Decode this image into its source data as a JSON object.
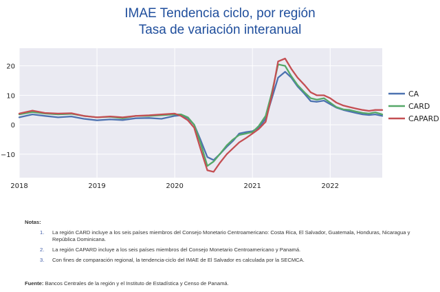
{
  "title_line1": "IMAE Tendencia ciclo, por región",
  "title_line2": "Tasa de variación interanual",
  "notes": {
    "heading": "Notas:",
    "items": [
      {
        "num": "1.",
        "text": "La región CARD incluye a los seis países miembros del Consejo Monetario Centroamericano: Costa Rica, El Salvador, Guatemala, Honduras, Nicaragua y República Dominicana."
      },
      {
        "num": "2.",
        "text": "La región CAPARD incluye a los seis países miembros del Consejo Monetario Centroamericano y Panamá."
      },
      {
        "num": "3.",
        "text": "Con fines de comparación regional, la tendencia-ciclo del IMAE de El Salvador es calculada por la SECMCA."
      }
    ]
  },
  "source": {
    "label": "Fuente:",
    "text": "Bancos Centrales de la región y el Instituto de Estadística y Censo de Panamá."
  },
  "chart_data": {
    "type": "line",
    "title": "IMAE Tendencia ciclo, por región",
    "subtitle": "Tasa de variación interanual",
    "xlim": [
      2018.0,
      2022.67
    ],
    "ylim": [
      -18,
      26
    ],
    "x_ticks": [
      2018,
      2019,
      2020,
      2021,
      2022
    ],
    "x_tick_labels": [
      "2018",
      "2019",
      "2020",
      "2021",
      "2022"
    ],
    "y_ticks": [
      -10,
      0,
      10,
      20
    ],
    "y_tick_labels": [
      "−10",
      "0",
      "10",
      "20"
    ],
    "grid": true,
    "legend": "right",
    "series": [
      {
        "name": "CA",
        "color": "#4c72b0",
        "points": [
          [
            2018.0,
            2.5
          ],
          [
            2018.17,
            3.5
          ],
          [
            2018.33,
            3.0
          ],
          [
            2018.5,
            2.5
          ],
          [
            2018.67,
            2.8
          ],
          [
            2018.83,
            2.0
          ],
          [
            2019.0,
            1.5
          ],
          [
            2019.17,
            1.8
          ],
          [
            2019.33,
            1.6
          ],
          [
            2019.5,
            2.2
          ],
          [
            2019.67,
            2.3
          ],
          [
            2019.83,
            2.0
          ],
          [
            2020.0,
            3.0
          ],
          [
            2020.08,
            3.2
          ],
          [
            2020.17,
            2.2
          ],
          [
            2020.25,
            0.0
          ],
          [
            2020.33,
            -5.0
          ],
          [
            2020.42,
            -11.0
          ],
          [
            2020.5,
            -12.0
          ],
          [
            2020.58,
            -10.0
          ],
          [
            2020.67,
            -7.5
          ],
          [
            2020.75,
            -5.5
          ],
          [
            2020.83,
            -3.0
          ],
          [
            2020.92,
            -2.5
          ],
          [
            2021.0,
            -2.2
          ],
          [
            2021.08,
            -1.0
          ],
          [
            2021.17,
            2.0
          ],
          [
            2021.25,
            9.0
          ],
          [
            2021.33,
            16.0
          ],
          [
            2021.42,
            18.0
          ],
          [
            2021.5,
            16.0
          ],
          [
            2021.58,
            13.0
          ],
          [
            2021.67,
            10.5
          ],
          [
            2021.75,
            8.0
          ],
          [
            2021.83,
            7.8
          ],
          [
            2021.92,
            8.2
          ],
          [
            2022.0,
            7.0
          ],
          [
            2022.08,
            5.8
          ],
          [
            2022.17,
            5.0
          ],
          [
            2022.25,
            4.5
          ],
          [
            2022.33,
            4.0
          ],
          [
            2022.42,
            3.5
          ],
          [
            2022.5,
            3.3
          ],
          [
            2022.58,
            3.5
          ],
          [
            2022.67,
            3.0
          ]
        ]
      },
      {
        "name": "CARD",
        "color": "#55a868",
        "points": [
          [
            2018.0,
            3.5
          ],
          [
            2018.17,
            4.3
          ],
          [
            2018.33,
            3.8
          ],
          [
            2018.5,
            3.5
          ],
          [
            2018.67,
            3.7
          ],
          [
            2018.83,
            3.0
          ],
          [
            2019.0,
            2.5
          ],
          [
            2019.17,
            2.7
          ],
          [
            2019.33,
            2.2
          ],
          [
            2019.5,
            3.0
          ],
          [
            2019.67,
            3.0
          ],
          [
            2019.83,
            3.2
          ],
          [
            2020.0,
            3.5
          ],
          [
            2020.08,
            3.5
          ],
          [
            2020.17,
            2.5
          ],
          [
            2020.25,
            0.0
          ],
          [
            2020.33,
            -6.0
          ],
          [
            2020.42,
            -14.0
          ],
          [
            2020.5,
            -12.5
          ],
          [
            2020.58,
            -10.0
          ],
          [
            2020.67,
            -7.0
          ],
          [
            2020.75,
            -5.0
          ],
          [
            2020.83,
            -3.5
          ],
          [
            2020.92,
            -3.0
          ],
          [
            2021.0,
            -2.5
          ],
          [
            2021.08,
            -0.5
          ],
          [
            2021.17,
            3.0
          ],
          [
            2021.25,
            11.0
          ],
          [
            2021.33,
            20.5
          ],
          [
            2021.42,
            20.0
          ],
          [
            2021.5,
            16.5
          ],
          [
            2021.58,
            13.5
          ],
          [
            2021.67,
            11.0
          ],
          [
            2021.75,
            9.0
          ],
          [
            2021.83,
            8.5
          ],
          [
            2021.92,
            9.0
          ],
          [
            2022.0,
            7.5
          ],
          [
            2022.08,
            6.0
          ],
          [
            2022.17,
            5.2
          ],
          [
            2022.25,
            5.0
          ],
          [
            2022.33,
            4.5
          ],
          [
            2022.42,
            4.0
          ],
          [
            2022.5,
            3.8
          ],
          [
            2022.58,
            4.2
          ],
          [
            2022.67,
            3.5
          ]
        ]
      },
      {
        "name": "CAPARD",
        "color": "#c44e52",
        "points": [
          [
            2018.0,
            3.8
          ],
          [
            2018.17,
            4.8
          ],
          [
            2018.33,
            4.0
          ],
          [
            2018.5,
            3.8
          ],
          [
            2018.67,
            3.9
          ],
          [
            2018.83,
            3.0
          ],
          [
            2019.0,
            2.5
          ],
          [
            2019.17,
            2.8
          ],
          [
            2019.33,
            2.5
          ],
          [
            2019.5,
            3.0
          ],
          [
            2019.67,
            3.2
          ],
          [
            2019.83,
            3.5
          ],
          [
            2020.0,
            3.8
          ],
          [
            2020.08,
            3.0
          ],
          [
            2020.17,
            1.5
          ],
          [
            2020.25,
            -1.0
          ],
          [
            2020.33,
            -8.0
          ],
          [
            2020.42,
            -15.5
          ],
          [
            2020.5,
            -16.0
          ],
          [
            2020.58,
            -13.0
          ],
          [
            2020.67,
            -10.0
          ],
          [
            2020.75,
            -8.0
          ],
          [
            2020.83,
            -6.0
          ],
          [
            2020.92,
            -4.5
          ],
          [
            2021.0,
            -3.0
          ],
          [
            2021.08,
            -1.5
          ],
          [
            2021.17,
            1.0
          ],
          [
            2021.25,
            10.0
          ],
          [
            2021.33,
            21.5
          ],
          [
            2021.42,
            22.5
          ],
          [
            2021.5,
            19.0
          ],
          [
            2021.58,
            16.0
          ],
          [
            2021.67,
            13.5
          ],
          [
            2021.75,
            11.0
          ],
          [
            2021.83,
            10.0
          ],
          [
            2021.92,
            10.0
          ],
          [
            2022.0,
            9.0
          ],
          [
            2022.08,
            7.5
          ],
          [
            2022.17,
            6.5
          ],
          [
            2022.25,
            6.0
          ],
          [
            2022.33,
            5.5
          ],
          [
            2022.42,
            5.0
          ],
          [
            2022.5,
            4.7
          ],
          [
            2022.58,
            5.0
          ],
          [
            2022.67,
            5.0
          ]
        ]
      }
    ]
  }
}
